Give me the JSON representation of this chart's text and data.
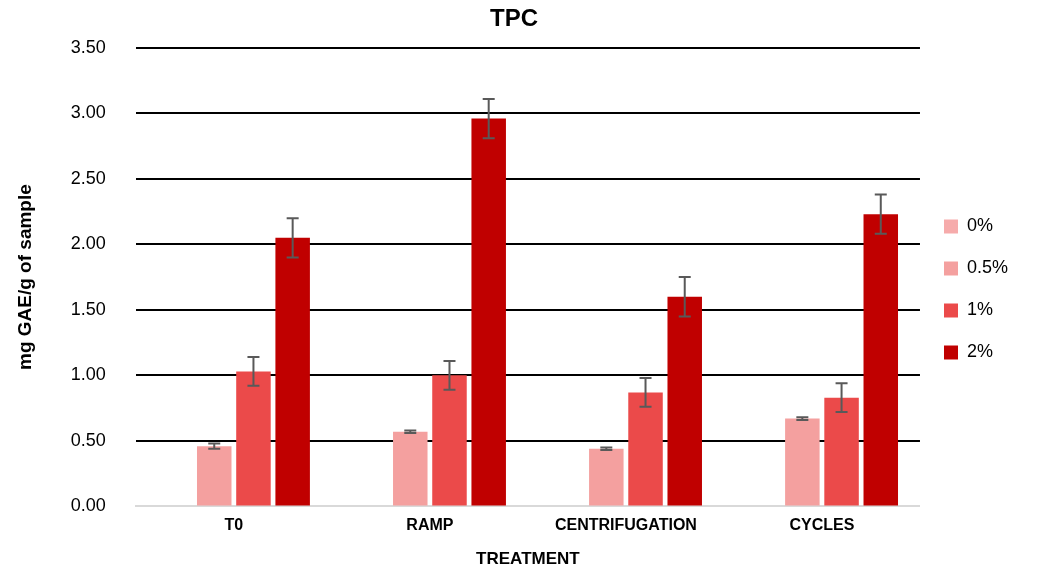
{
  "chart_data": {
    "type": "bar",
    "title": "TPC",
    "xlabel": "TREATMENT",
    "ylabel": "mg GAE/g of sample",
    "categories": [
      "T0",
      "RAMP",
      "CENTRIFUGATION",
      "CYCLES"
    ],
    "series": [
      {
        "name": "0%",
        "color": "#f6abab",
        "values": [
          0,
          0,
          0,
          0
        ]
      },
      {
        "name": "0.5%",
        "color": "#f4a09f",
        "values": [
          0.46,
          0.57,
          0.44,
          0.67
        ],
        "errors": [
          0.02,
          0.01,
          0.01,
          0.01
        ]
      },
      {
        "name": "1%",
        "color": "#eb4a4a",
        "values": [
          1.03,
          1.0,
          0.87,
          0.83
        ],
        "errors": [
          0.11,
          0.11,
          0.11,
          0.11
        ]
      },
      {
        "name": "2%",
        "color": "#c00000",
        "values": [
          2.05,
          2.96,
          1.6,
          2.23
        ],
        "errors": [
          0.15,
          0.15,
          0.15,
          0.15
        ]
      }
    ],
    "ylim": [
      0,
      3.5
    ],
    "yticks": [
      {
        "value": 0,
        "label": "0.00"
      },
      {
        "value": 0.5,
        "label": "0.50"
      },
      {
        "value": 1,
        "label": "1.00"
      },
      {
        "value": 1.5,
        "label": "1.50"
      },
      {
        "value": 2,
        "label": "2.00"
      },
      {
        "value": 2.5,
        "label": "2.50"
      },
      {
        "value": 3,
        "label": "3.00"
      },
      {
        "value": 3.5,
        "label": "3.50"
      }
    ],
    "grid": "y",
    "legend": "right"
  }
}
